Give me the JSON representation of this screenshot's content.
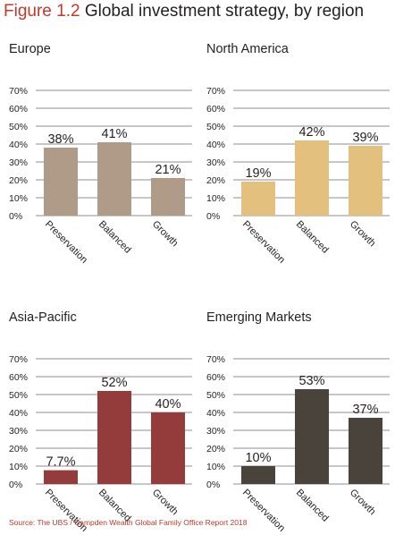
{
  "figure": {
    "number": "Figure 1.2",
    "title": "Global investment strategy, by region"
  },
  "source": "Source: The UBS / Campden Wealth Global Family Office Report 2018",
  "chart_data": [
    {
      "type": "bar",
      "title": "Europe",
      "categories": [
        "Preservation",
        "Balanced",
        "Growth"
      ],
      "values": [
        38,
        41,
        21
      ],
      "value_labels": [
        "38%",
        "41%",
        "21%"
      ],
      "yticks": [
        "0%",
        "10%",
        "20%",
        "30%",
        "40%",
        "50%",
        "60%",
        "70%"
      ],
      "ylim": [
        0,
        70
      ],
      "grid": true,
      "color": "#b09a88"
    },
    {
      "type": "bar",
      "title": "North America",
      "categories": [
        "Preservation",
        "Balanced",
        "Growth"
      ],
      "values": [
        19,
        42,
        39
      ],
      "value_labels": [
        "19%",
        "42%",
        "39%"
      ],
      "yticks": [
        "0%",
        "10%",
        "20%",
        "30%",
        "40%",
        "50%",
        "60%",
        "70%"
      ],
      "ylim": [
        0,
        70
      ],
      "grid": true,
      "color": "#e3c07e"
    },
    {
      "type": "bar",
      "title": "Asia-Pacific",
      "categories": [
        "Preservation",
        "Balanced",
        "Growth"
      ],
      "values": [
        7.7,
        52,
        40
      ],
      "value_labels": [
        "7.7%",
        "52%",
        "40%"
      ],
      "yticks": [
        "0%",
        "10%",
        "20%",
        "30%",
        "40%",
        "50%",
        "60%",
        "70%"
      ],
      "ylim": [
        0,
        70
      ],
      "grid": true,
      "color": "#943b3c"
    },
    {
      "type": "bar",
      "title": "Emerging Markets",
      "categories": [
        "Preservation",
        "Balanced",
        "Growth"
      ],
      "values": [
        10,
        53,
        37
      ],
      "value_labels": [
        "10%",
        "53%",
        "37%"
      ],
      "yticks": [
        "0%",
        "10%",
        "20%",
        "30%",
        "40%",
        "50%",
        "60%",
        "70%"
      ],
      "ylim": [
        0,
        70
      ],
      "grid": true,
      "color": "#4a433c"
    }
  ]
}
